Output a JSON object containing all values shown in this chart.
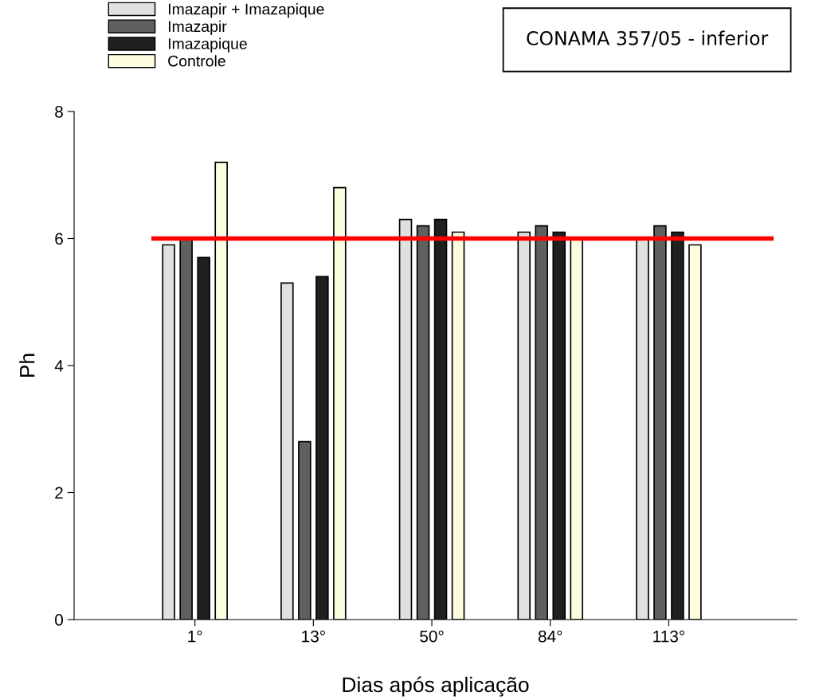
{
  "chart_data": {
    "type": "bar",
    "xlabel": "Dias após aplicação",
    "ylabel": "Ph",
    "categories": [
      "1°",
      "13°",
      "50°",
      "84°",
      "113°"
    ],
    "series": [
      {
        "name": "Imazapir + Imazapique",
        "color": "#e0e0e0",
        "values": [
          5.9,
          5.3,
          6.3,
          6.1,
          6.0
        ]
      },
      {
        "name": "Imazapir",
        "color": "#606060",
        "values": [
          6.0,
          2.8,
          6.2,
          6.2,
          6.2
        ]
      },
      {
        "name": "Imazapique",
        "color": "#202020",
        "values": [
          5.7,
          5.4,
          6.3,
          6.1,
          6.1
        ]
      },
      {
        "name": "Controle",
        "color": "#fdfde0",
        "values": [
          7.2,
          6.8,
          6.1,
          6.0,
          5.9
        ]
      }
    ],
    "ylim": [
      0,
      8
    ],
    "yticks": [
      0,
      2,
      4,
      6,
      8
    ],
    "ref_lines": [
      {
        "axis": "y",
        "value": 6,
        "color": "#ff0000"
      }
    ],
    "annotations": [
      "CONAMA 357/05 - inferior"
    ],
    "legend": "top left",
    "grid": false
  }
}
